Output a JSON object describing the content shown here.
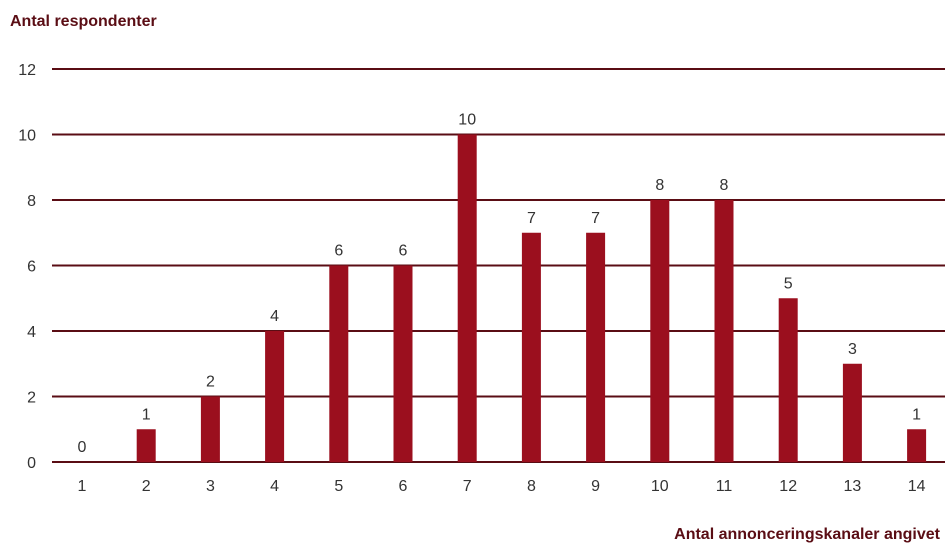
{
  "chart_data": {
    "type": "bar",
    "categories": [
      "1",
      "2",
      "3",
      "4",
      "5",
      "6",
      "7",
      "8",
      "9",
      "10",
      "11",
      "12",
      "13",
      "14"
    ],
    "values": [
      0,
      1,
      2,
      4,
      6,
      6,
      10,
      7,
      7,
      8,
      8,
      5,
      3,
      1
    ],
    "ylabel": "Antal respondenter",
    "xlabel": "Antal annonceringskanaler angivet",
    "ylim": [
      0,
      12
    ],
    "yticks": [
      0,
      2,
      4,
      6,
      8,
      10,
      12
    ],
    "grid": true,
    "data_labels": true,
    "colors": {
      "bar": "#9b0f1e",
      "gridline": "#5a0d14",
      "axis_title": "#5a0d14",
      "tick_text": "#333333"
    }
  }
}
